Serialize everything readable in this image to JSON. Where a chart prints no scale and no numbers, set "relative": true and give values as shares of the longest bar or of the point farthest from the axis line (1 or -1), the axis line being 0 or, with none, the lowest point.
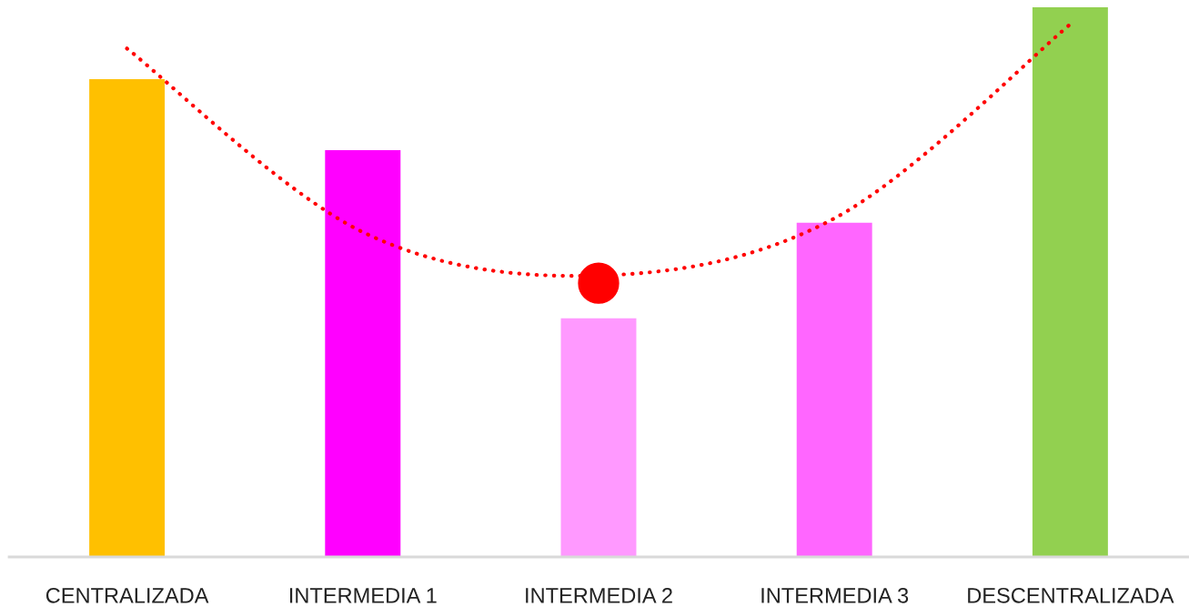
{
  "chart_data": {
    "type": "bar",
    "relative": true,
    "categories": [
      "CENTRALIZADA",
      "INTERMEDIA 1",
      "INTERMEDIA 2",
      "INTERMEDIA 3",
      "DESCENTRALIZADA"
    ],
    "series": [
      {
        "colors": [
          "#ffc000",
          "#ff00ff",
          "#ff99ff",
          "#ff66ff",
          "#92d050"
        ],
        "values": [
          0.869,
          0.74,
          0.434,
          0.608,
          1.0
        ]
      },
      {
        "type": "line",
        "color": "#ff0000",
        "line_style": "dotted",
        "values": [
          0.925,
          0.591,
          0.512,
          0.616,
          0.969
        ]
      },
      {
        "type": "scatter",
        "color": "#ff0000",
        "marker": "circle",
        "values": [
          null,
          null,
          0.498,
          null,
          null
        ]
      }
    ],
    "grid": false,
    "legend": false
  }
}
